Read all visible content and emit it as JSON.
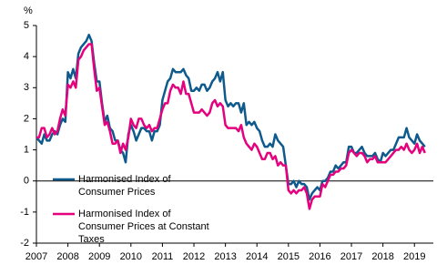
{
  "chart_data": {
    "type": "line",
    "y_label": "%",
    "x": [
      2007,
      2007.083,
      2007.167,
      2007.25,
      2007.333,
      2007.417,
      2007.5,
      2007.583,
      2007.667,
      2007.75,
      2007.833,
      2007.917,
      2008,
      2008.083,
      2008.167,
      2008.25,
      2008.333,
      2008.417,
      2008.5,
      2008.583,
      2008.667,
      2008.75,
      2008.833,
      2008.917,
      2009,
      2009.083,
      2009.167,
      2009.25,
      2009.333,
      2009.417,
      2009.5,
      2009.583,
      2009.667,
      2009.75,
      2009.833,
      2009.917,
      2010,
      2010.083,
      2010.167,
      2010.25,
      2010.333,
      2010.417,
      2010.5,
      2010.583,
      2010.667,
      2010.75,
      2010.833,
      2010.917,
      2011,
      2011.083,
      2011.167,
      2011.25,
      2011.333,
      2011.417,
      2011.5,
      2011.583,
      2011.667,
      2011.75,
      2011.833,
      2011.917,
      2012,
      2012.083,
      2012.167,
      2012.25,
      2012.333,
      2012.417,
      2012.5,
      2012.583,
      2012.667,
      2012.75,
      2012.833,
      2012.917,
      2013,
      2013.083,
      2013.167,
      2013.25,
      2013.333,
      2013.417,
      2013.5,
      2013.583,
      2013.667,
      2013.75,
      2013.833,
      2013.917,
      2014,
      2014.083,
      2014.167,
      2014.25,
      2014.333,
      2014.417,
      2014.5,
      2014.583,
      2014.667,
      2014.75,
      2014.833,
      2014.917,
      2015,
      2015.083,
      2015.167,
      2015.25,
      2015.333,
      2015.417,
      2015.5,
      2015.583,
      2015.667,
      2015.75,
      2015.833,
      2015.917,
      2016,
      2016.083,
      2016.167,
      2016.25,
      2016.333,
      2016.417,
      2016.5,
      2016.583,
      2016.667,
      2016.75,
      2016.833,
      2016.917,
      2017,
      2017.083,
      2017.167,
      2017.25,
      2017.333,
      2017.417,
      2017.5,
      2017.583,
      2017.667,
      2017.75,
      2017.833,
      2017.917,
      2018,
      2018.083,
      2018.167,
      2018.25,
      2018.333,
      2018.417,
      2018.5,
      2018.583,
      2018.667,
      2018.75,
      2018.833,
      2018.917,
      2019,
      2019.083,
      2019.167,
      2019.25,
      2019.333
    ],
    "series": [
      {
        "name": "Harmonised Index of Consumer Prices",
        "color": "#0f5a8c",
        "values": [
          1.4,
          1.3,
          1.2,
          1.5,
          1.3,
          1.3,
          1.5,
          1.6,
          1.5,
          1.8,
          2.0,
          1.9,
          3.5,
          3.3,
          3.6,
          3.3,
          4.1,
          4.3,
          4.4,
          4.5,
          4.7,
          4.5,
          3.8,
          3.2,
          3.2,
          2.5,
          1.9,
          2.1,
          1.7,
          1.6,
          1.3,
          1.3,
          1.0,
          0.9,
          0.6,
          1.5,
          1.8,
          1.6,
          1.3,
          1.5,
          1.7,
          1.7,
          1.6,
          1.6,
          1.3,
          1.6,
          1.6,
          1.8,
          2.6,
          2.9,
          3.2,
          3.3,
          3.6,
          3.5,
          3.5,
          3.5,
          3.6,
          3.4,
          3.3,
          2.9,
          2.9,
          3.0,
          2.9,
          3.1,
          3.1,
          2.9,
          3.0,
          3.2,
          3.3,
          3.5,
          3.2,
          3.5,
          2.6,
          2.4,
          2.5,
          2.4,
          2.5,
          2.5,
          2.2,
          2.5,
          1.8,
          1.9,
          1.8,
          1.9,
          1.7,
          1.6,
          1.3,
          1.1,
          1.1,
          1.2,
          1.1,
          1.5,
          1.3,
          1.2,
          1.1,
          0.5,
          -0.1,
          -0.1,
          0.0,
          -0.2,
          0.0,
          -0.1,
          -0.1,
          -0.2,
          -0.6,
          -0.4,
          -0.3,
          -0.2,
          -0.3,
          0.0,
          0.0,
          0.1,
          0.3,
          0.3,
          0.5,
          0.4,
          0.5,
          0.6,
          0.6,
          1.1,
          1.1,
          0.9,
          0.9,
          1.0,
          1.1,
          0.9,
          0.8,
          0.8,
          0.8,
          0.9,
          0.7,
          0.6,
          0.9,
          0.8,
          0.9,
          1.0,
          1.0,
          1.2,
          1.4,
          1.4,
          1.4,
          1.7,
          1.4,
          1.3,
          1.2,
          1.5,
          1.3,
          1.2,
          1.1
        ]
      },
      {
        "name": "Harmonised Index of Consumer Prices at Constant Taxes",
        "color": "#e5007d",
        "values": [
          1.4,
          1.4,
          1.7,
          1.7,
          1.4,
          1.5,
          1.7,
          1.5,
          1.6,
          2.0,
          2.3,
          2.1,
          3.1,
          3.0,
          3.2,
          3.0,
          3.9,
          4.0,
          4.2,
          4.3,
          4.4,
          4.4,
          3.6,
          2.9,
          3.0,
          2.4,
          1.8,
          1.9,
          1.6,
          1.2,
          1.2,
          1.3,
          0.9,
          1.2,
          1.0,
          1.4,
          2.0,
          1.8,
          1.7,
          2.0,
          2.0,
          1.8,
          1.7,
          1.8,
          1.6,
          1.7,
          1.7,
          2.0,
          2.3,
          2.5,
          2.5,
          2.9,
          3.1,
          3.0,
          3.0,
          2.8,
          3.2,
          2.8,
          2.8,
          2.5,
          2.2,
          2.2,
          2.2,
          2.3,
          2.2,
          2.1,
          2.2,
          2.5,
          2.6,
          2.4,
          2.5,
          2.4,
          1.8,
          1.7,
          1.7,
          1.7,
          1.7,
          1.6,
          1.8,
          1.4,
          1.2,
          1.1,
          1.0,
          1.2,
          1.1,
          0.9,
          0.7,
          0.7,
          0.9,
          0.9,
          0.7,
          0.8,
          0.5,
          0.6,
          0.5,
          0.5,
          -0.3,
          -0.4,
          -0.3,
          -0.4,
          -0.3,
          -0.3,
          -0.2,
          -0.4,
          -0.9,
          -0.6,
          -0.5,
          -0.5,
          -0.5,
          -0.1,
          -0.2,
          0.0,
          0.2,
          0.2,
          0.3,
          0.3,
          0.4,
          0.4,
          0.5,
          0.9,
          1.0,
          0.9,
          0.8,
          0.9,
          0.9,
          0.8,
          0.6,
          0.7,
          0.7,
          0.8,
          0.6,
          0.6,
          0.6,
          0.6,
          0.7,
          0.8,
          0.9,
          1.0,
          1.0,
          1.1,
          1.0,
          1.2,
          1.0,
          0.9,
          1.0,
          1.2,
          0.9,
          1.1,
          0.9
        ]
      }
    ],
    "xlim": [
      2007,
      2019.6
    ],
    "xticks": [
      2007,
      2008,
      2009,
      2010,
      2011,
      2012,
      2013,
      2014,
      2015,
      2016,
      2017,
      2018,
      2019
    ],
    "ylim": [
      -2,
      5
    ],
    "yticks": [
      -2,
      -1,
      0,
      1,
      2,
      3,
      4,
      5
    ],
    "grid": false,
    "legend": "left"
  }
}
